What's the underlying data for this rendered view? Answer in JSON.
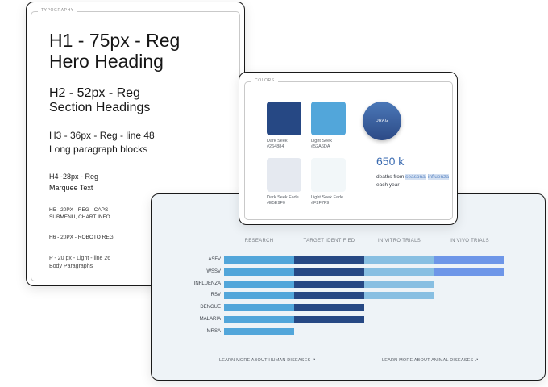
{
  "typography": {
    "section_label": "TYPOGRAPHY",
    "h1_line1": "H1 - 75px - Reg",
    "h1_line2": "Hero Heading",
    "h2_line1": "H2 - 52px - Reg",
    "h2_line2": "Section Headings",
    "h3_line1": "H3 - 36px - Reg - line 48",
    "h3_line2": "Long paragraph blocks",
    "h4_line1": "H4 -28px - Reg",
    "h4_line2": "Marquee Text",
    "h5_line1": "H5 - 20PX - REG - CAPS",
    "h5_line2": "SUBMENU, CHART INFO",
    "h6": "H6 - 20PX - ROBOTO REG",
    "p_line1": "P - 20 px - Light - line 26",
    "p_line2": "Body Paragraphs"
  },
  "colors": {
    "section_label": "COLORS",
    "swatches": [
      {
        "name": "Dark Seek",
        "hex": "#264884"
      },
      {
        "name": "Light Seek",
        "hex": "#52A6DA"
      },
      {
        "name": "Dark Seek Fade",
        "hex": "#E5E9F0"
      },
      {
        "name": "Light Seek Fade",
        "hex": "#F2F7F9"
      }
    ],
    "drag_label": "DRAG",
    "stat_value": "650 k",
    "stat_prefix": "deaths from ",
    "stat_highlight_1": "seasonal",
    "stat_highlight_2": "influenza",
    "stat_suffix": " each year"
  },
  "chart_data": {
    "type": "bar",
    "orientation": "horizontal-stacked",
    "stages": [
      "RESEARCH",
      "TARGET IDENTIFIED",
      "IN VITRO TRIALS",
      "IN VIVO TRIALS"
    ],
    "stage_colors": [
      "#52A6DA",
      "#264884",
      "#88BFE2",
      "#6E96E8"
    ],
    "categories": [
      "ASFV",
      "WSSV",
      "INFLUENZA",
      "RSV",
      "DENGUE",
      "MALARIA",
      "MRSA"
    ],
    "progress": [
      4,
      4,
      3,
      3,
      2,
      2,
      1
    ],
    "xlim": [
      0,
      4
    ]
  },
  "links": {
    "human": "LEARN MORE ABOUT HUMAN DISEASES",
    "animal": "LEARN MORE ABOUT ANIMAL DISEASES",
    "arrow": "↗"
  }
}
